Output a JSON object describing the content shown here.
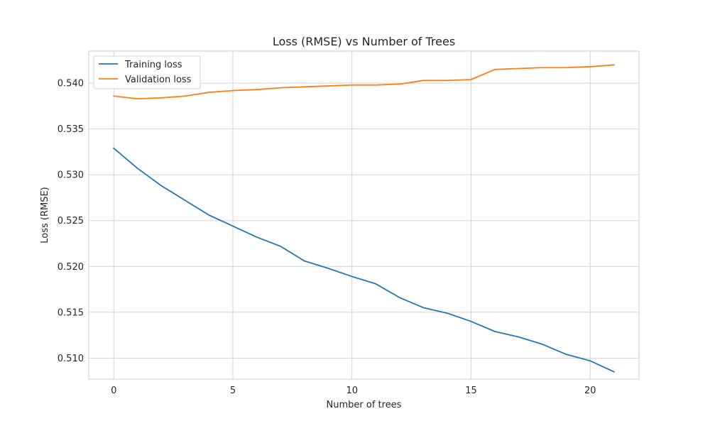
{
  "chart_data": {
    "type": "line",
    "title": "Loss (RMSE) vs Number of Trees",
    "xlabel": "Number of trees",
    "ylabel": "Loss (RMSE)",
    "xlim": [
      -1.05,
      22.05
    ],
    "ylim": [
      0.5077,
      0.5435
    ],
    "xticks": [
      0,
      5,
      10,
      15,
      20
    ],
    "xtick_labels": [
      "0",
      "5",
      "10",
      "15",
      "20"
    ],
    "yticks": [
      0.51,
      0.515,
      0.52,
      0.525,
      0.53,
      0.535,
      0.54
    ],
    "ytick_labels": [
      "0.510",
      "0.515",
      "0.520",
      "0.525",
      "0.530",
      "0.535",
      "0.540"
    ],
    "grid": true,
    "legend_position": "upper-left",
    "x": [
      0,
      1,
      2,
      3,
      4,
      5,
      6,
      7,
      8,
      9,
      10,
      11,
      12,
      13,
      14,
      15,
      16,
      17,
      18,
      19,
      20,
      21
    ],
    "series": [
      {
        "name": "Training loss",
        "color": "#1f77b4",
        "values": [
          0.5329,
          0.5307,
          0.5288,
          0.5272,
          0.5256,
          0.5244,
          0.5232,
          0.5222,
          0.5206,
          0.5198,
          0.5189,
          0.5181,
          0.5166,
          0.5155,
          0.5149,
          0.514,
          0.5129,
          0.5123,
          0.5115,
          0.5104,
          0.5097,
          0.5085
        ]
      },
      {
        "name": "Validation loss",
        "color": "#ff7f0e",
        "values": [
          0.5386,
          0.5383,
          0.5384,
          0.5386,
          0.539,
          0.5392,
          0.5393,
          0.5395,
          0.5396,
          0.5397,
          0.5398,
          0.5398,
          0.5399,
          0.5403,
          0.5403,
          0.5404,
          0.5415,
          0.5416,
          0.5417,
          0.5417,
          0.5418,
          0.542
        ]
      }
    ]
  }
}
